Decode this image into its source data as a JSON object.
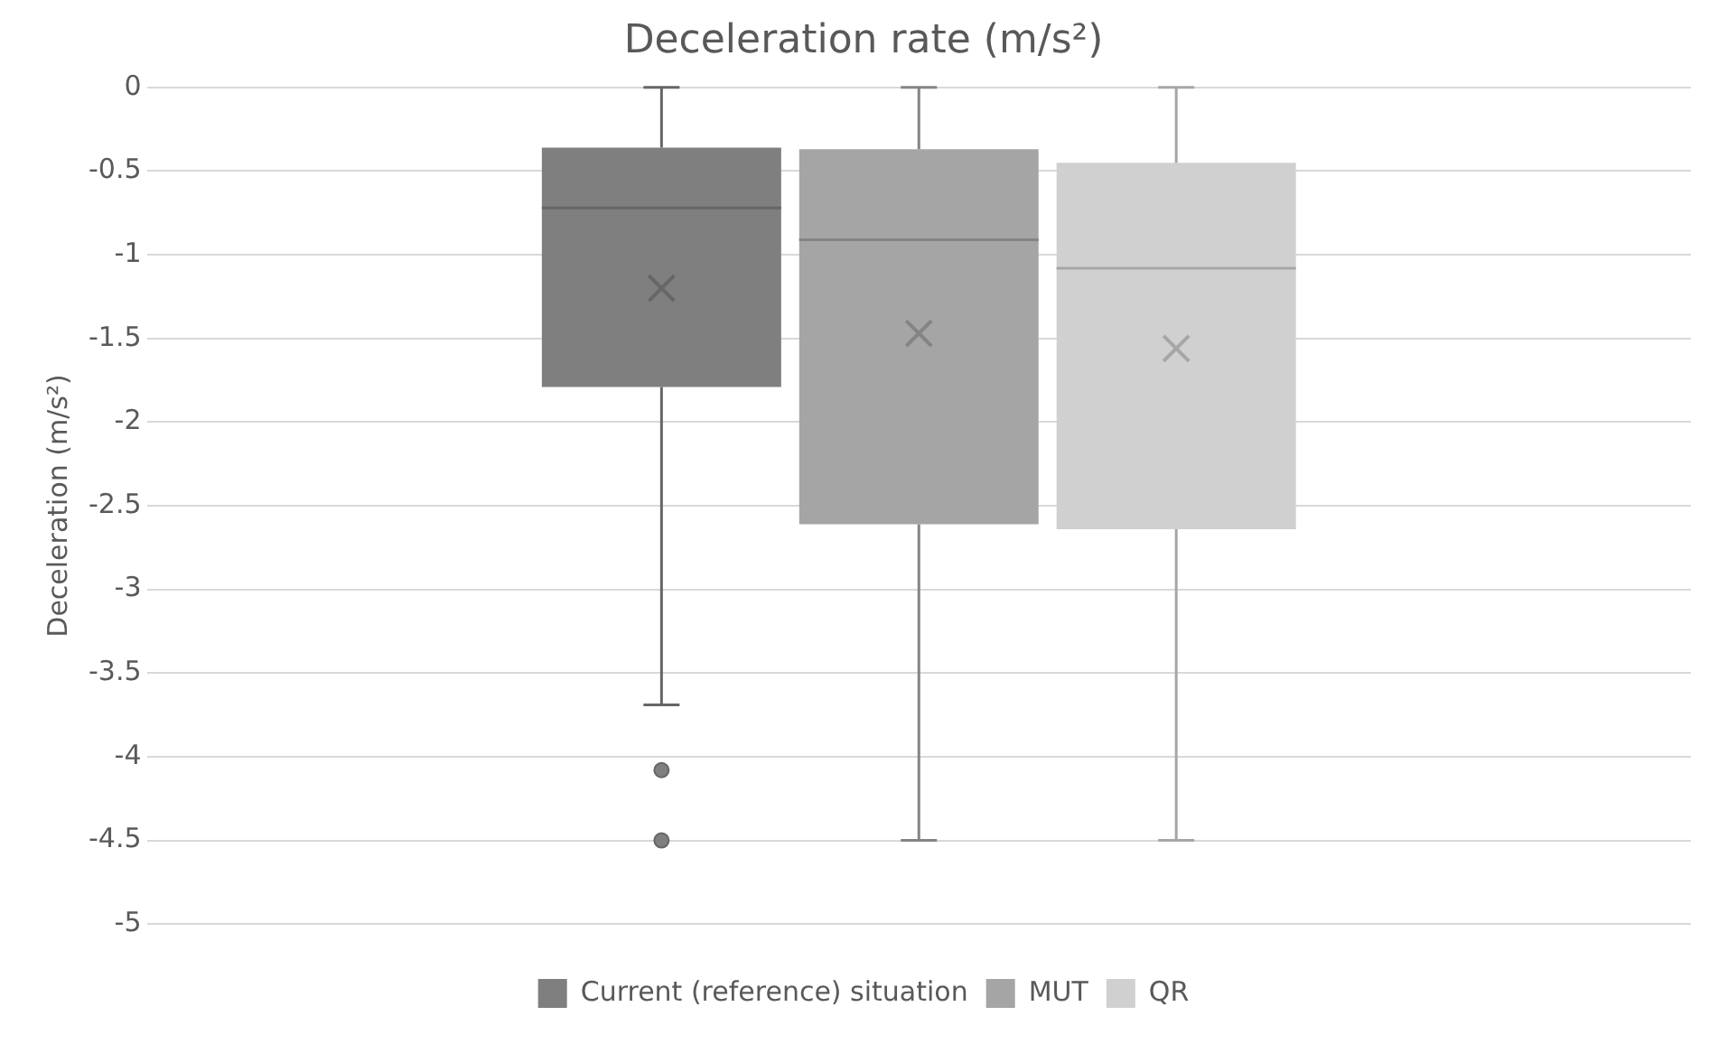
{
  "chart_data": {
    "type": "box",
    "title": "Deceleration rate (m/s²)",
    "ylabel": "Deceleration (m/s²)",
    "categories": [
      null
    ],
    "series": [
      {
        "name": "Current (reference) situation",
        "color": "#7f7f7f",
        "boxes": [
          {
            "low": -3.69,
            "q1": -1.79,
            "median": -0.72,
            "q3": -0.36,
            "high": 0,
            "mean": -1.2,
            "outliers": [
              -4.08,
              -4.5
            ]
          }
        ]
      },
      {
        "name": "MUT",
        "color": "#a5a5a5",
        "boxes": [
          {
            "low": -4.5,
            "q1": -2.61,
            "median": -0.91,
            "q3": -0.37,
            "high": 0,
            "mean": -1.47
          }
        ]
      },
      {
        "name": "QR",
        "color": "#d0d0d0",
        "boxes": [
          {
            "low": -4.5,
            "q1": -2.64,
            "median": -1.08,
            "q3": -0.45,
            "high": 0,
            "mean": -1.56
          }
        ]
      }
    ],
    "ylim": [
      -5,
      0
    ],
    "yticks": [
      0,
      -0.5,
      -1,
      -1.5,
      -2,
      -2.5,
      -3,
      -3.5,
      -4,
      -4.5,
      -5
    ],
    "grid": "y",
    "legend": "bottom"
  }
}
